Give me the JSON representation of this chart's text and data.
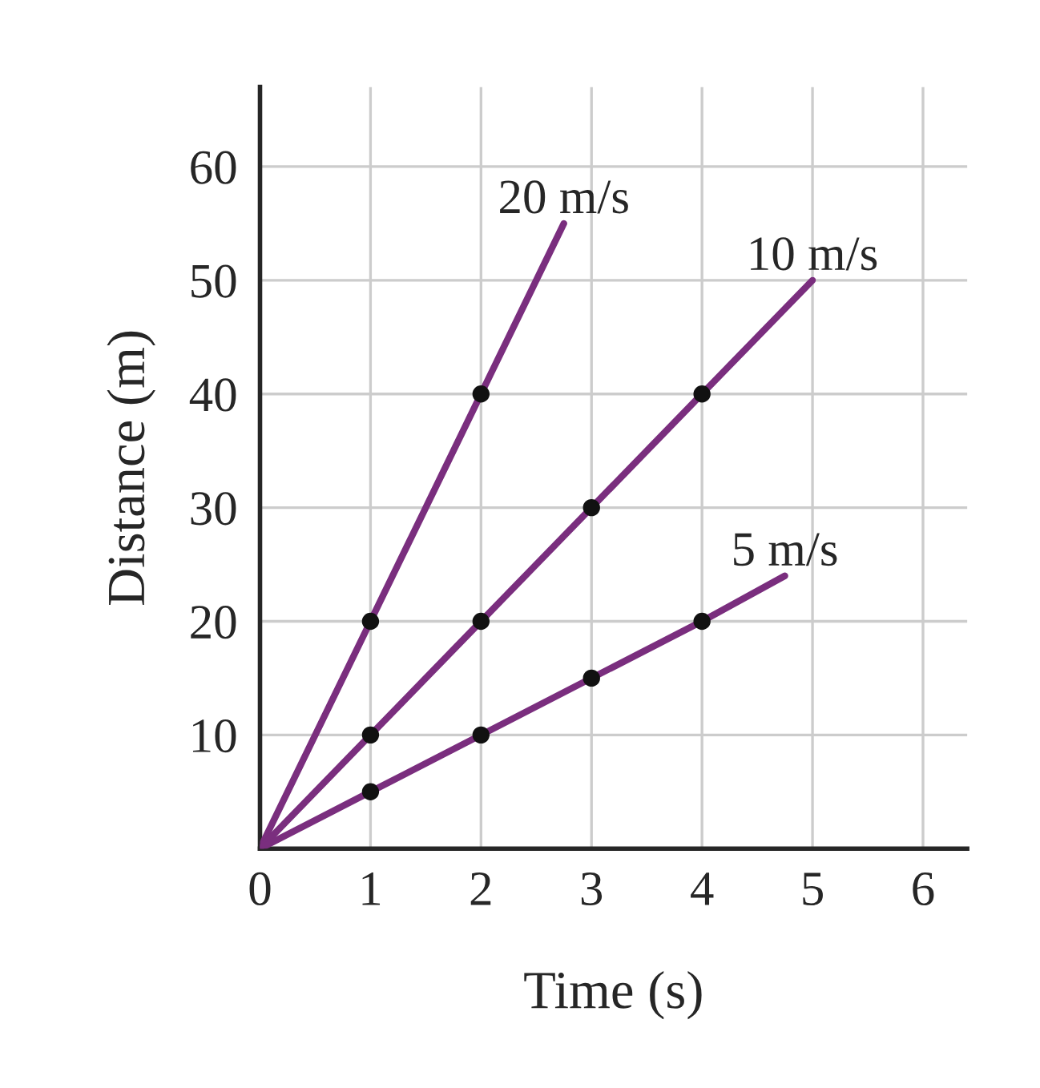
{
  "chart_data": {
    "type": "line",
    "xlabel": "Time (s)",
    "ylabel": "Distance (m)",
    "xlim": [
      0,
      6.4
    ],
    "ylim": [
      0,
      67
    ],
    "xticks": [
      0,
      1,
      2,
      3,
      4,
      5,
      6
    ],
    "yticks": [
      10,
      20,
      30,
      40,
      50,
      60
    ],
    "grid": true,
    "line_style": "solid",
    "marker": "none",
    "series": [
      {
        "name": "20 m/s",
        "color": "#7a2e7e",
        "x": [
          0,
          1,
          2,
          2.75
        ],
        "values": [
          0,
          20,
          40,
          55
        ]
      },
      {
        "name": "10 m/s",
        "color": "#7a2e7e",
        "x": [
          0,
          1,
          2,
          3,
          4,
          5
        ],
        "values": [
          0,
          10,
          20,
          30,
          40,
          50
        ]
      },
      {
        "name": "5 m/s",
        "color": "#7a2e7e",
        "x": [
          0,
          1,
          2,
          3,
          4,
          4.75
        ],
        "values": [
          0,
          5,
          10,
          15,
          20,
          24
        ]
      },
      {
        "type": "scatter",
        "color": "#111111",
        "marker": "circle",
        "x": [
          1,
          2,
          1,
          2,
          3,
          4,
          1,
          2,
          3,
          4
        ],
        "values": [
          20,
          40,
          10,
          20,
          30,
          40,
          5,
          10,
          15,
          20
        ]
      }
    ]
  }
}
